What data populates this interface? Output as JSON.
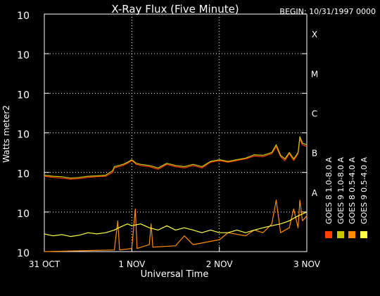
{
  "chart_data": {
    "type": "line",
    "title": "X-Ray Flux (Five Minute)",
    "begin_label": "BEGIN: 10/31/1997 0000",
    "ylabel": "Watts meter2",
    "xlabel": "Universal Time",
    "yscale": "log",
    "ylim": [
      1e-09,
      0.001
    ],
    "y_ticks": [
      {
        "value": 0.001,
        "base": "10",
        "exp": "-3"
      },
      {
        "value": 0.0001,
        "base": "10",
        "exp": "-4"
      },
      {
        "value": 1e-05,
        "base": "10",
        "exp": "-5"
      },
      {
        "value": 1e-06,
        "base": "10",
        "exp": "-6"
      },
      {
        "value": 1e-07,
        "base": "10",
        "exp": "-7"
      },
      {
        "value": 1e-08,
        "base": "10",
        "exp": "-8"
      },
      {
        "value": 1e-09,
        "base": "10",
        "exp": "-9"
      }
    ],
    "xlim": [
      0,
      3
    ],
    "x_ticks": [
      {
        "value": 0,
        "label": "31 OCT"
      },
      {
        "value": 1,
        "label": "1 NOV"
      },
      {
        "value": 2,
        "label": "2 NOV"
      },
      {
        "value": 3,
        "label": "3 NOV"
      }
    ],
    "flare_classes": [
      {
        "label": "X",
        "value": 0.0003162
      },
      {
        "label": "M",
        "value": 3.162e-05
      },
      {
        "label": "C",
        "value": 3.162e-06
      },
      {
        "label": "B",
        "value": 3.162e-07
      },
      {
        "label": "A",
        "value": 3.162e-08
      }
    ],
    "series": [
      {
        "name": "GOES 8 1.0-8.0 A",
        "color": "#ff4000",
        "points": [
          [
            0,
            8e-08
          ],
          [
            0.1,
            7.5e-08
          ],
          [
            0.2,
            7.2e-08
          ],
          [
            0.3,
            6.8e-08
          ],
          [
            0.4,
            7e-08
          ],
          [
            0.5,
            7.5e-08
          ],
          [
            0.6,
            7.8e-08
          ],
          [
            0.7,
            8e-08
          ],
          [
            0.78,
            1e-07
          ],
          [
            0.8,
            1.3e-07
          ],
          [
            0.85,
            1.4e-07
          ],
          [
            0.9,
            1.5e-07
          ],
          [
            0.95,
            1.7e-07
          ],
          [
            1.0,
            2e-07
          ],
          [
            1.05,
            1.6e-07
          ],
          [
            1.1,
            1.5e-07
          ],
          [
            1.2,
            1.4e-07
          ],
          [
            1.3,
            1.2e-07
          ],
          [
            1.4,
            1.6e-07
          ],
          [
            1.5,
            1.4e-07
          ],
          [
            1.6,
            1.3e-07
          ],
          [
            1.7,
            1.5e-07
          ],
          [
            1.8,
            1.3e-07
          ],
          [
            1.9,
            1.8e-07
          ],
          [
            2.0,
            2e-07
          ],
          [
            2.1,
            1.8e-07
          ],
          [
            2.2,
            2e-07
          ],
          [
            2.3,
            2.2e-07
          ],
          [
            2.4,
            2.6e-07
          ],
          [
            2.5,
            2.5e-07
          ],
          [
            2.6,
            3e-07
          ],
          [
            2.65,
            4.5e-07
          ],
          [
            2.7,
            2.5e-07
          ],
          [
            2.75,
            2e-07
          ],
          [
            2.8,
            3e-07
          ],
          [
            2.85,
            2e-07
          ],
          [
            2.9,
            3e-07
          ],
          [
            2.92,
            7e-07
          ],
          [
            2.95,
            5e-07
          ],
          [
            3.0,
            4.5e-07
          ]
        ]
      },
      {
        "name": "GOES 8 0.5-4.0 A",
        "color": "#ff8c00",
        "points": [
          [
            0,
            1e-09
          ],
          [
            0.8,
            1.1e-09
          ],
          [
            0.84,
            6e-09
          ],
          [
            0.86,
            1.1e-09
          ],
          [
            1.0,
            1.2e-09
          ],
          [
            1.04,
            1.2e-08
          ],
          [
            1.06,
            1.2e-09
          ],
          [
            1.2,
            1.5e-09
          ],
          [
            1.22,
            5e-09
          ],
          [
            1.24,
            1.3e-09
          ],
          [
            1.5,
            1.4e-09
          ],
          [
            1.6,
            2.5e-09
          ],
          [
            1.7,
            1.5e-09
          ],
          [
            2.0,
            2e-09
          ],
          [
            2.1,
            3e-09
          ],
          [
            2.3,
            2.5e-09
          ],
          [
            2.4,
            3.5e-09
          ],
          [
            2.5,
            3e-09
          ],
          [
            2.6,
            5e-09
          ],
          [
            2.65,
            2e-08
          ],
          [
            2.7,
            3e-09
          ],
          [
            2.8,
            4e-09
          ],
          [
            2.85,
            1.2e-08
          ],
          [
            2.9,
            4e-09
          ],
          [
            2.92,
            2e-08
          ],
          [
            2.95,
            6e-09
          ],
          [
            3.0,
            8e-09
          ]
        ]
      },
      {
        "name": "GOES 9 0.5-4.0 A",
        "color": "#ffff44",
        "points": [
          [
            0,
            2.8e-09
          ],
          [
            0.1,
            2.5e-09
          ],
          [
            0.2,
            2.7e-09
          ],
          [
            0.3,
            2.4e-09
          ],
          [
            0.4,
            2.6e-09
          ],
          [
            0.5,
            3e-09
          ],
          [
            0.6,
            2.8e-09
          ],
          [
            0.7,
            3e-09
          ],
          [
            0.8,
            3.5e-09
          ],
          [
            0.85,
            4e-09
          ],
          [
            0.95,
            5e-09
          ],
          [
            1.0,
            4.5e-09
          ],
          [
            1.1,
            5e-09
          ],
          [
            1.2,
            4e-09
          ],
          [
            1.3,
            3.5e-09
          ],
          [
            1.4,
            4.5e-09
          ],
          [
            1.5,
            3.5e-09
          ],
          [
            1.6,
            4e-09
          ],
          [
            1.7,
            3.5e-09
          ],
          [
            1.8,
            3e-09
          ],
          [
            1.9,
            3.5e-09
          ],
          [
            2.0,
            3e-09
          ],
          [
            2.1,
            3e-09
          ],
          [
            2.2,
            3.5e-09
          ],
          [
            2.3,
            3e-09
          ],
          [
            2.4,
            3.5e-09
          ],
          [
            2.5,
            4e-09
          ],
          [
            2.6,
            4.5e-09
          ],
          [
            2.7,
            5e-09
          ],
          [
            2.8,
            6e-09
          ],
          [
            2.9,
            8e-09
          ],
          [
            3.0,
            1e-08
          ]
        ]
      },
      {
        "name": "GOES 9 1.0-8.0 A",
        "color": "#c8c800",
        "points": [
          [
            0,
            8.5e-08
          ],
          [
            0.1,
            8e-08
          ],
          [
            0.2,
            7.8e-08
          ],
          [
            0.3,
            7.2e-08
          ],
          [
            0.4,
            7.5e-08
          ],
          [
            0.5,
            8e-08
          ],
          [
            0.6,
            8.2e-08
          ],
          [
            0.7,
            8.5e-08
          ],
          [
            0.78,
            1.1e-07
          ],
          [
            0.8,
            1.4e-07
          ],
          [
            0.85,
            1.5e-07
          ],
          [
            0.9,
            1.6e-07
          ],
          [
            0.95,
            1.8e-07
          ],
          [
            1.0,
            2.1e-07
          ],
          [
            1.05,
            1.7e-07
          ],
          [
            1.1,
            1.6e-07
          ],
          [
            1.2,
            1.5e-07
          ],
          [
            1.3,
            1.3e-07
          ],
          [
            1.4,
            1.7e-07
          ],
          [
            1.5,
            1.5e-07
          ],
          [
            1.6,
            1.4e-07
          ],
          [
            1.7,
            1.6e-07
          ],
          [
            1.8,
            1.4e-07
          ],
          [
            1.9,
            1.9e-07
          ],
          [
            2.0,
            2.1e-07
          ],
          [
            2.1,
            1.9e-07
          ],
          [
            2.2,
            2.1e-07
          ],
          [
            2.3,
            2.3e-07
          ],
          [
            2.4,
            2.8e-07
          ],
          [
            2.5,
            2.7e-07
          ],
          [
            2.6,
            3.2e-07
          ],
          [
            2.65,
            5e-07
          ],
          [
            2.7,
            2.7e-07
          ],
          [
            2.75,
            2.2e-07
          ],
          [
            2.8,
            3.2e-07
          ],
          [
            2.85,
            2.2e-07
          ],
          [
            2.9,
            3.2e-07
          ],
          [
            2.92,
            8e-07
          ],
          [
            2.95,
            5.5e-07
          ],
          [
            3.0,
            5e-07
          ]
        ]
      }
    ],
    "legend": [
      {
        "label": "GOES 8 1.0-8.0 A",
        "color": "#ff4000"
      },
      {
        "label": "GOES 8 0.5-4.0 A",
        "color": "#ff8c00"
      },
      {
        "label": "GOES 9 1.0-8.0 A",
        "color": "#c8c800"
      },
      {
        "label": "GOES 9 0.5-4.0 A",
        "color": "#ffff44"
      }
    ],
    "grid": true,
    "legend_position": "right",
    "background": "#000000",
    "foreground": "#ffffff"
  }
}
